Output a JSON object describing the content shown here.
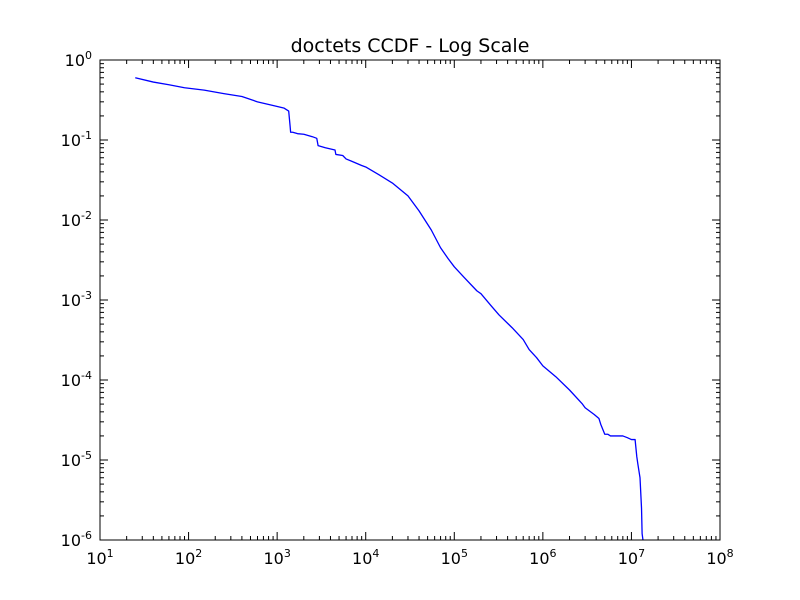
{
  "chart_data": {
    "type": "line",
    "title": "doctets CCDF - Log Scale",
    "xlabel": "",
    "ylabel": "",
    "x_scale": "log",
    "y_scale": "log",
    "xlim": [
      10,
      100000000
    ],
    "ylim": [
      1e-06,
      1
    ],
    "grid": false,
    "legend": "none",
    "x_ticks": [
      {
        "value": 10,
        "base": "10",
        "exp": "1"
      },
      {
        "value": 100,
        "base": "10",
        "exp": "2"
      },
      {
        "value": 1000,
        "base": "10",
        "exp": "3"
      },
      {
        "value": 10000,
        "base": "10",
        "exp": "4"
      },
      {
        "value": 100000,
        "base": "10",
        "exp": "5"
      },
      {
        "value": 1000000,
        "base": "10",
        "exp": "6"
      },
      {
        "value": 10000000,
        "base": "10",
        "exp": "7"
      },
      {
        "value": 100000000,
        "base": "10",
        "exp": "8"
      }
    ],
    "y_ticks": [
      {
        "value": 1,
        "base": "10",
        "exp": "0"
      },
      {
        "value": 0.1,
        "base": "10",
        "exp": "-1"
      },
      {
        "value": 0.01,
        "base": "10",
        "exp": "-2"
      },
      {
        "value": 0.001,
        "base": "10",
        "exp": "-3"
      },
      {
        "value": 0.0001,
        "base": "10",
        "exp": "-4"
      },
      {
        "value": 1e-05,
        "base": "10",
        "exp": "-5"
      },
      {
        "value": 1e-06,
        "base": "10",
        "exp": "-6"
      }
    ],
    "series": [
      {
        "color": "#0000ff",
        "x": [
          25,
          40,
          60,
          90,
          150,
          250,
          400,
          600,
          900,
          1200,
          1350,
          1400,
          1420,
          1500,
          1700,
          2000,
          2500,
          2800,
          2900,
          3500,
          4500,
          4600,
          5500,
          6000,
          7000,
          9000,
          10000,
          14000,
          20000,
          30000,
          40000,
          55000,
          70000,
          85000,
          100000,
          130000,
          180000,
          200000,
          260000,
          320000,
          450000,
          600000,
          700000,
          850000,
          1000000,
          1400000,
          2000000,
          2800000,
          3000000,
          3800000,
          4300000,
          4500000,
          5000000,
          5400000,
          5800000,
          6000000,
          7000000,
          8000000,
          9000000,
          10000000,
          11000000,
          11500000,
          11800000,
          12500000,
          13000000,
          13200000,
          13500000
        ],
        "y": [
          0.6,
          0.53,
          0.49,
          0.45,
          0.42,
          0.38,
          0.35,
          0.3,
          0.27,
          0.25,
          0.23,
          0.15,
          0.125,
          0.125,
          0.12,
          0.118,
          0.11,
          0.105,
          0.085,
          0.08,
          0.075,
          0.066,
          0.064,
          0.058,
          0.054,
          0.048,
          0.046,
          0.037,
          0.029,
          0.02,
          0.013,
          0.0075,
          0.0045,
          0.0033,
          0.0026,
          0.0019,
          0.0013,
          0.0012,
          0.00085,
          0.00065,
          0.00045,
          0.00032,
          0.00024,
          0.00019,
          0.00015,
          0.00011,
          7.5e-05,
          5e-05,
          4.5e-05,
          3.7e-05,
          3.3e-05,
          2.8e-05,
          2.1e-05,
          2.1e-05,
          2e-05,
          2e-05,
          2e-05,
          2e-05,
          1.9e-05,
          1.8e-05,
          1.8e-05,
          1.1e-05,
          9e-06,
          6e-06,
          2.5e-06,
          1.2e-06,
          1e-06
        ]
      }
    ]
  }
}
